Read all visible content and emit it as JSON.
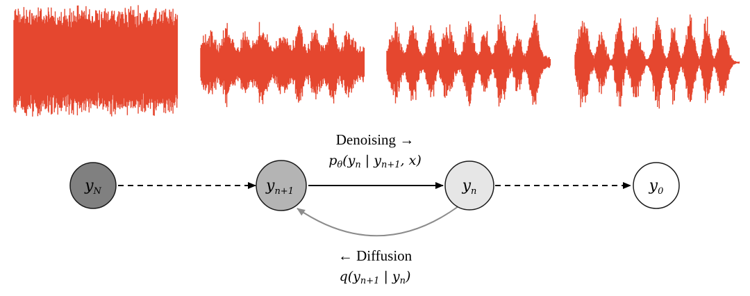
{
  "waveform_color": "#e5472f",
  "waveforms": [
    {
      "name": "waveform-pure-noise",
      "noise_level": 1.0
    },
    {
      "name": "waveform-mostly-noise",
      "noise_level": 0.55
    },
    {
      "name": "waveform-partly-denoised",
      "noise_level": 0.18
    },
    {
      "name": "waveform-clean",
      "noise_level": 0.03
    }
  ],
  "nodes": {
    "yN": {
      "base": "y",
      "sub": "N",
      "fill": "#808080"
    },
    "yn1": {
      "base": "y",
      "sub": "n+1",
      "fill": "#b4b4b4"
    },
    "yn": {
      "base": "y",
      "sub": "n",
      "fill": "#e6e6e6"
    },
    "y0": {
      "base": "y",
      "sub": "0",
      "fill": "#ffffff"
    }
  },
  "labels": {
    "denoising_title": "Denoising →",
    "denoising_formula": {
      "p": "p",
      "theta": "θ",
      "rest_a": "(y",
      "s1": "n",
      "bar": " | y",
      "s2": "n+1",
      "rest_b": ", x)"
    },
    "diffusion_title": "← Diffusion",
    "diffusion_formula": {
      "q": "q(y",
      "s1": "n+1",
      "bar": " | y",
      "s2": "n",
      "close": ")"
    }
  },
  "colors": {
    "arrow": "#000000",
    "diffusion_arrow": "#8c8c8c",
    "node_stroke": "#1a1a1a"
  }
}
